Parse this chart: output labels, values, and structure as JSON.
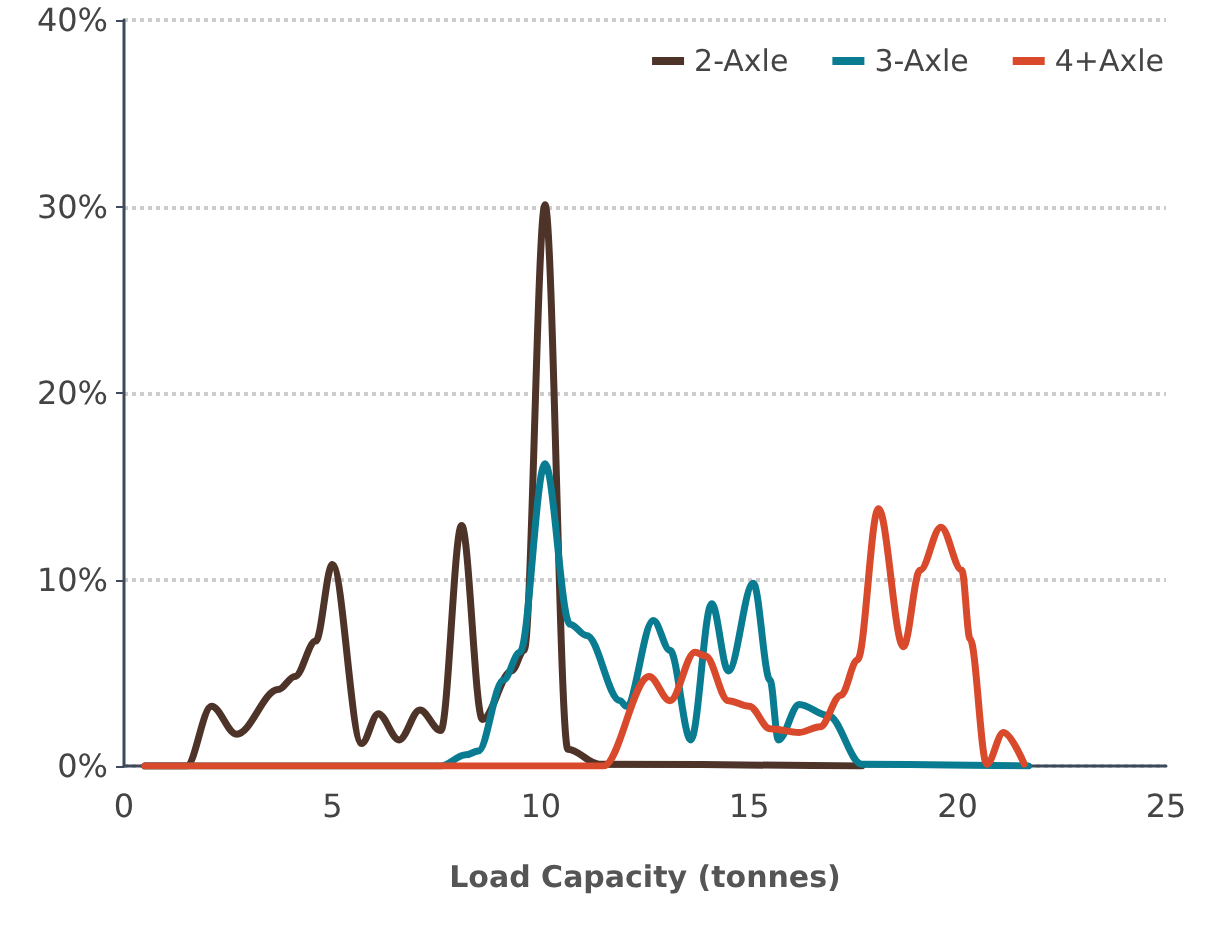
{
  "chart_data": {
    "type": "line",
    "xlabel": "Load Capacity (tonnes)",
    "xlim": [
      0,
      25
    ],
    "xticks": [
      0,
      5,
      10,
      15,
      20,
      25
    ],
    "ylim": [
      0,
      40
    ],
    "yticks": [
      {
        "value": 0,
        "label": "0%"
      },
      {
        "value": 10,
        "label": "10%"
      },
      {
        "value": 20,
        "label": "20%"
      },
      {
        "value": 30,
        "label": "30%"
      },
      {
        "value": 40,
        "label": "40%"
      }
    ],
    "grid": "y",
    "legend": "top right",
    "marker": "none",
    "line_style": "solid",
    "series": [
      {
        "name": "2-Axle",
        "color": "#4e3329",
        "x": [
          0.5,
          1.5,
          2.1,
          2.7,
          3.7,
          4.1,
          4.6,
          5.0,
          5.7,
          6.1,
          6.6,
          7.1,
          7.6,
          8.1,
          8.6,
          9.3,
          9.6,
          10.1,
          10.65,
          11.4,
          17.7
        ],
        "values": [
          0,
          0,
          3.2,
          1.7,
          4.1,
          4.8,
          6.7,
          10.8,
          1.2,
          2.8,
          1.4,
          3.0,
          1.9,
          12.9,
          2.5,
          5.1,
          6.2,
          30.1,
          0.9,
          0.1,
          0
        ]
      },
      {
        "name": "3-Axle",
        "color": "#0a7c91",
        "x": [
          0.5,
          7.6,
          8.2,
          8.5,
          9.1,
          9.5,
          10.1,
          10.7,
          11.1,
          11.9,
          12.05,
          12.7,
          13.1,
          13.6,
          14.1,
          14.5,
          15.1,
          15.5,
          15.7,
          16.2,
          16.9,
          17.7,
          21.7
        ],
        "values": [
          0,
          0,
          0.6,
          0.8,
          4.6,
          6.1,
          16.2,
          7.6,
          7.0,
          3.5,
          3.2,
          7.8,
          6.2,
          1.4,
          8.7,
          5.1,
          9.8,
          4.6,
          1.4,
          3.3,
          2.7,
          0.1,
          0
        ]
      },
      {
        "name": "4+Axle",
        "color": "#d9492b",
        "x": [
          0.5,
          11.5,
          12.6,
          13.1,
          13.7,
          13.95,
          14.5,
          15.0,
          15.5,
          16.2,
          16.7,
          17.2,
          17.6,
          18.1,
          18.7,
          19.1,
          19.6,
          20.1,
          20.3,
          20.7,
          21.1,
          21.6
        ],
        "values": [
          0,
          0,
          4.8,
          3.5,
          6.1,
          5.9,
          3.5,
          3.2,
          2.0,
          1.8,
          2.1,
          3.8,
          5.7,
          13.8,
          6.4,
          10.5,
          12.8,
          10.5,
          6.8,
          0.1,
          1.8,
          0.1
        ]
      }
    ]
  }
}
